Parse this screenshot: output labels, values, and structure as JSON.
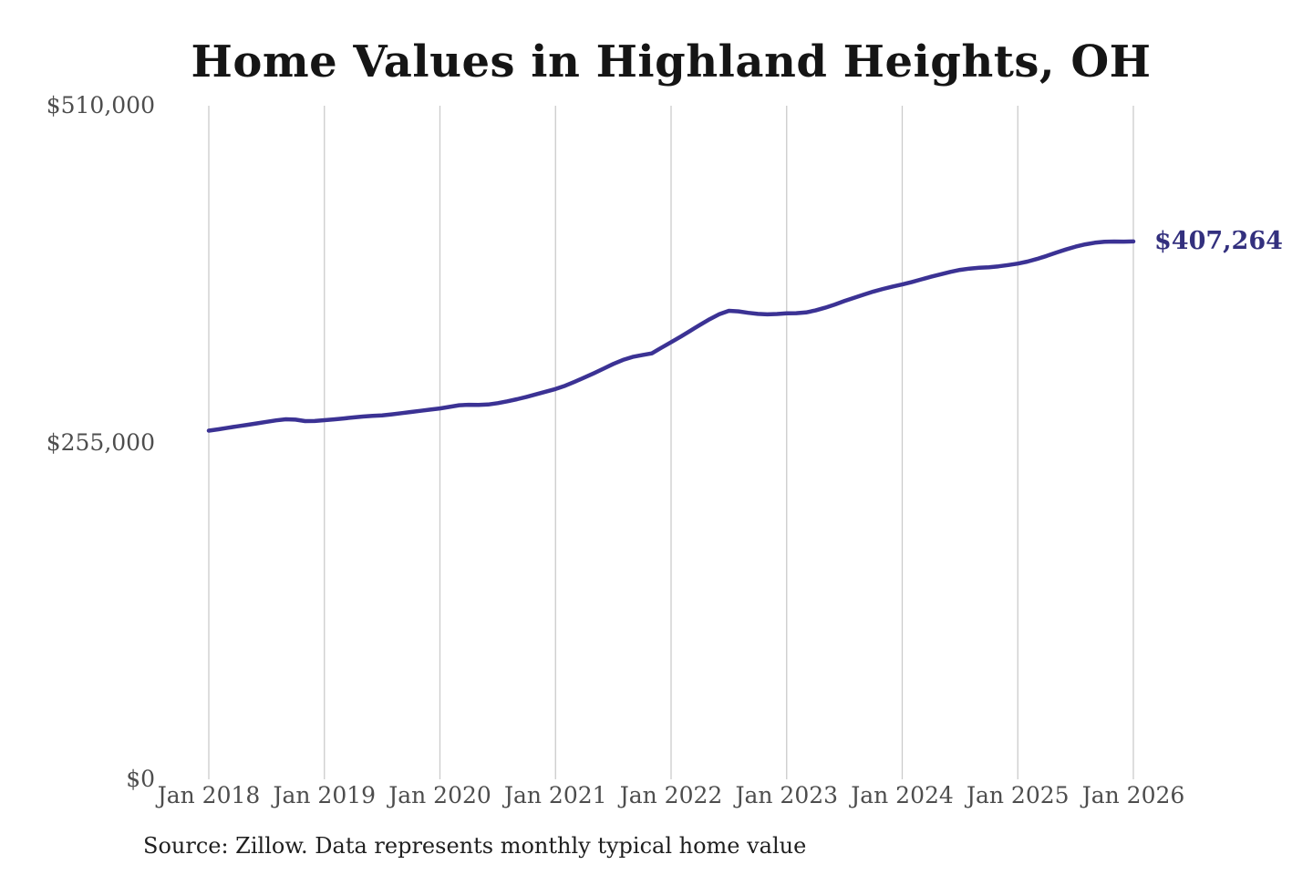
{
  "page": {
    "background_color": "#ffffff"
  },
  "chart_data": {
    "type": "line",
    "title": "Home Values in Highland Heights, OH",
    "source_note": "Source: Zillow. Data represents monthly typical home value",
    "series_name": "Monthly typical home value",
    "unit": "USD",
    "line_color": "#3b3294",
    "end_label_color": "#33307e",
    "gridline_color": "#cbcbcb",
    "axis_label_color": "#4d4d4d",
    "grid": "vertical-only",
    "legend_position": "none",
    "ylim": [
      0,
      510000
    ],
    "y_ticks": [
      {
        "label": "$0",
        "value": 0
      },
      {
        "label": "$255,000",
        "value": 255000
      },
      {
        "label": "$510,000",
        "value": 510000
      }
    ],
    "x_ticks": [
      {
        "label": "Jan 2018",
        "month_index": 0
      },
      {
        "label": "Jan 2019",
        "month_index": 12
      },
      {
        "label": "Jan 2020",
        "month_index": 24
      },
      {
        "label": "Jan 2021",
        "month_index": 36
      },
      {
        "label": "Jan 2022",
        "month_index": 48
      },
      {
        "label": "Jan 2023",
        "month_index": 60
      },
      {
        "label": "Jan 2024",
        "month_index": 72
      },
      {
        "label": "Jan 2025",
        "month_index": 84
      },
      {
        "label": "Jan 2026",
        "month_index": 96
      }
    ],
    "end_label": "$407,264",
    "final_value": 407264,
    "x": [
      "2018-01",
      "2018-02",
      "2018-03",
      "2018-04",
      "2018-05",
      "2018-06",
      "2018-07",
      "2018-08",
      "2018-09",
      "2018-10",
      "2018-11",
      "2018-12",
      "2019-01",
      "2019-02",
      "2019-03",
      "2019-04",
      "2019-05",
      "2019-06",
      "2019-07",
      "2019-08",
      "2019-09",
      "2019-10",
      "2019-11",
      "2019-12",
      "2020-01",
      "2020-02",
      "2020-03",
      "2020-04",
      "2020-05",
      "2020-06",
      "2020-07",
      "2020-08",
      "2020-09",
      "2020-10",
      "2020-11",
      "2020-12",
      "2021-01",
      "2021-02",
      "2021-03",
      "2021-04",
      "2021-05",
      "2021-06",
      "2021-07",
      "2021-08",
      "2021-09",
      "2021-10",
      "2021-11",
      "2021-12",
      "2022-01",
      "2022-02",
      "2022-03",
      "2022-04",
      "2022-05",
      "2022-06",
      "2022-07",
      "2022-08",
      "2022-09",
      "2022-10",
      "2022-11",
      "2022-12",
      "2023-01",
      "2023-02",
      "2023-03",
      "2023-04",
      "2023-05",
      "2023-06",
      "2023-07",
      "2023-08",
      "2023-09",
      "2023-10",
      "2023-11",
      "2023-12",
      "2024-01",
      "2024-02",
      "2024-03",
      "2024-04",
      "2024-05",
      "2024-06",
      "2024-07",
      "2024-08",
      "2024-09",
      "2024-10",
      "2024-11",
      "2024-12",
      "2025-01",
      "2025-02",
      "2025-03",
      "2025-04",
      "2025-05",
      "2025-06",
      "2025-07",
      "2025-08",
      "2025-09",
      "2025-10",
      "2025-11",
      "2025-12",
      "2026-01"
    ],
    "values": [
      264000,
      265000,
      266200,
      267300,
      268400,
      269500,
      270700,
      271800,
      272600,
      272300,
      271200,
      271300,
      271900,
      272500,
      273200,
      274000,
      274700,
      275200,
      275600,
      276300,
      277200,
      278100,
      279000,
      279900,
      280800,
      282000,
      283200,
      283600,
      283500,
      283800,
      284800,
      286200,
      287800,
      289600,
      291500,
      293500,
      295500,
      298000,
      301000,
      304200,
      307500,
      311000,
      314500,
      317500,
      319800,
      321200,
      322500,
      326800,
      331000,
      335200,
      339600,
      344100,
      348400,
      352100,
      354700,
      354300,
      353200,
      352400,
      352000,
      352300,
      352800,
      352900,
      353500,
      355000,
      357100,
      359500,
      362100,
      364600,
      367000,
      369300,
      371300,
      373100,
      374700,
      376500,
      378500,
      380500,
      382400,
      384200,
      385700,
      386700,
      387300,
      387700,
      388400,
      389400,
      390500,
      392000,
      394000,
      396300,
      398800,
      401200,
      403300,
      405000,
      406300,
      407000,
      407200,
      407100,
      407264
    ]
  }
}
